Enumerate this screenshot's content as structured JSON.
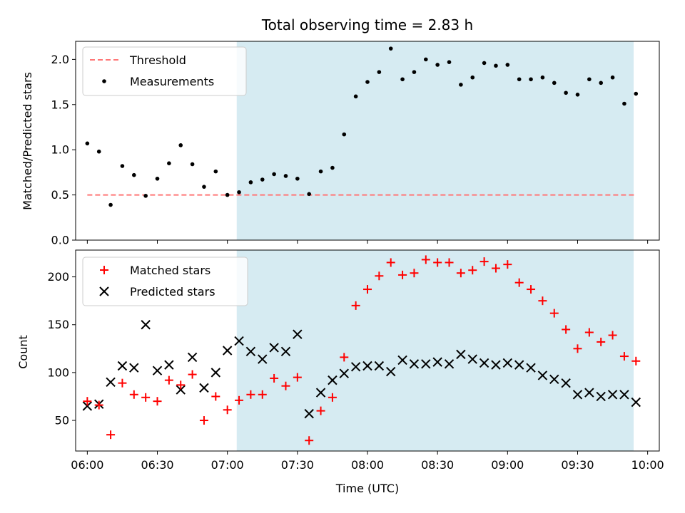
{
  "chart_data": {
    "type": "scatter",
    "title": "Total observing time = 2.83 h",
    "xlabel": "Time (UTC)",
    "x_tick_labels": [
      "06:00",
      "06:30",
      "07:00",
      "07:30",
      "08:00",
      "08:30",
      "09:00",
      "09:30",
      "10:00"
    ],
    "xlim": [
      "05:55",
      "10:05"
    ],
    "shaded_interval": [
      "07:04",
      "09:54"
    ],
    "shade_color": "#add8e6",
    "times": [
      "06:00",
      "06:05",
      "06:10",
      "06:15",
      "06:20",
      "06:25",
      "06:30",
      "06:35",
      "06:40",
      "06:45",
      "06:50",
      "06:55",
      "07:00",
      "07:05",
      "07:10",
      "07:15",
      "07:20",
      "07:25",
      "07:30",
      "07:35",
      "07:40",
      "07:45",
      "07:50",
      "07:55",
      "08:00",
      "08:05",
      "08:10",
      "08:15",
      "08:20",
      "08:25",
      "08:30",
      "08:35",
      "08:40",
      "08:45",
      "08:50",
      "08:55",
      "09:00",
      "09:05",
      "09:10",
      "09:15",
      "09:20",
      "09:25",
      "09:30",
      "09:35",
      "09:40",
      "09:45",
      "09:50",
      "09:55"
    ],
    "panels": [
      {
        "ylabel": "Matched/Predicted stars",
        "ylim": [
          0,
          2.2
        ],
        "y_ticks": [
          0.0,
          0.5,
          1.0,
          1.5,
          2.0
        ],
        "y_tick_labels": [
          "0.0",
          "0.5",
          "1.0",
          "1.5",
          "2.0"
        ],
        "threshold": 0.5,
        "legend_position": "upper-left",
        "legend": [
          "Threshold",
          "Measurements"
        ],
        "series": [
          {
            "name": "Threshold",
            "style": "dashed-line",
            "color": "#ff7777",
            "x_range": [
              "06:00",
              "09:55"
            ],
            "value": 0.5
          },
          {
            "name": "Measurements",
            "style": "dot",
            "color": "#000000",
            "values": [
              1.07,
              0.98,
              0.39,
              0.82,
              0.72,
              0.49,
              0.68,
              0.85,
              1.05,
              0.84,
              0.59,
              0.76,
              0.5,
              0.53,
              0.64,
              0.67,
              0.73,
              0.71,
              0.68,
              0.51,
              0.76,
              0.8,
              1.17,
              1.59,
              1.75,
              1.86,
              2.12,
              1.78,
              1.86,
              2.0,
              1.94,
              1.97,
              1.72,
              1.8,
              1.96,
              1.93,
              1.94,
              1.78,
              1.78,
              1.8,
              1.74,
              1.63,
              1.61,
              1.78,
              1.74,
              1.8,
              1.51,
              1.62
            ]
          }
        ]
      },
      {
        "ylabel": "Count",
        "ylim": [
          18,
          228
        ],
        "y_ticks": [
          50,
          100,
          150,
          200
        ],
        "y_tick_labels": [
          "50",
          "100",
          "150",
          "200"
        ],
        "legend_position": "upper-left",
        "legend": [
          "Matched stars",
          "Predicted stars"
        ],
        "series": [
          {
            "name": "Matched stars",
            "style": "plus",
            "color": "#ff0000",
            "values": [
              70,
              66,
              35,
              89,
              77,
              74,
              70,
              92,
              87,
              98,
              50,
              75,
              61,
              71,
              77,
              77,
              94,
              86,
              95,
              29,
              60,
              74,
              116,
              170,
              187,
              201,
              215,
              202,
              204,
              218,
              215,
              215,
              204,
              207,
              216,
              209,
              213,
              194,
              187,
              175,
              162,
              145,
              125,
              142,
              132,
              139,
              117,
              112
            ]
          },
          {
            "name": "Predicted stars",
            "style": "x",
            "color": "#000000",
            "values": [
              65,
              67,
              90,
              107,
              105,
              150,
              102,
              108,
              82,
              116,
              84,
              100,
              123,
              133,
              122,
              114,
              126,
              122,
              140,
              57,
              79,
              92,
              99,
              106,
              107,
              107,
              101,
              113,
              109,
              109,
              111,
              109,
              119,
              114,
              110,
              108,
              110,
              108,
              105,
              97,
              93,
              89,
              77,
              79,
              75,
              77,
              77,
              69
            ]
          }
        ]
      }
    ]
  }
}
